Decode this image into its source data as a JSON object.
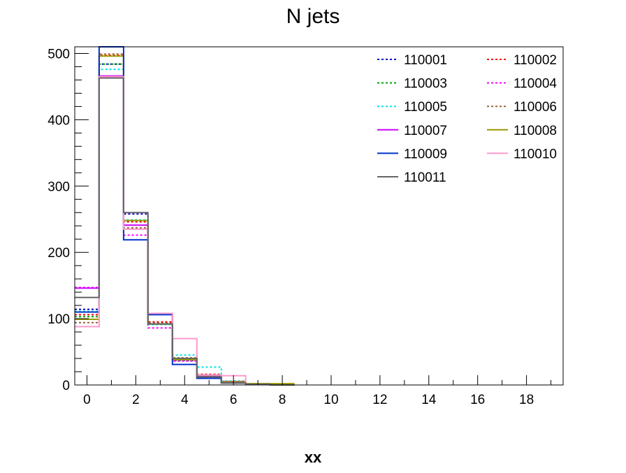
{
  "chart_data": {
    "type": "line",
    "title": "N jets",
    "xlabel": "xx",
    "ylabel": "",
    "xlim": [
      -0.5,
      19.5
    ],
    "ylim": [
      0,
      510
    ],
    "x_ticks": [
      0,
      2,
      4,
      6,
      8,
      10,
      12,
      14,
      16,
      18
    ],
    "y_ticks": [
      0,
      100,
      200,
      300,
      400,
      500
    ],
    "bins": [
      0,
      1,
      2,
      3,
      4,
      5,
      6,
      7,
      8
    ],
    "legend_position": "top-right",
    "series": [
      {
        "name": "110001",
        "color": "#0000cc",
        "dash": true,
        "values": [
          114,
          484,
          258,
          93,
          37,
          13,
          4,
          1,
          0
        ]
      },
      {
        "name": "110002",
        "color": "#ff0000",
        "dash": true,
        "values": [
          106,
          497,
          246,
          95,
          40,
          16,
          5,
          2,
          1
        ]
      },
      {
        "name": "110003",
        "color": "#00a000",
        "dash": true,
        "values": [
          103,
          484,
          248,
          92,
          38,
          14,
          4,
          1,
          0
        ]
      },
      {
        "name": "110004",
        "color": "#ff00ff",
        "dash": true,
        "values": [
          147,
          466,
          226,
          86,
          36,
          13,
          3,
          1,
          0
        ]
      },
      {
        "name": "110005",
        "color": "#00e5e5",
        "dash": true,
        "values": [
          111,
          476,
          249,
          91,
          45,
          27,
          6,
          2,
          1
        ]
      },
      {
        "name": "110006",
        "color": "#996633",
        "dash": true,
        "values": [
          94,
          499,
          237,
          93,
          41,
          15,
          5,
          1,
          0
        ]
      },
      {
        "name": "110007",
        "color": "#cc00ff",
        "dash": false,
        "values": [
          146,
          466,
          241,
          107,
          39,
          12,
          4,
          1,
          0
        ]
      },
      {
        "name": "110008",
        "color": "#999900",
        "dash": false,
        "values": [
          99,
          496,
          248,
          92,
          38,
          11,
          4,
          2,
          2
        ]
      },
      {
        "name": "110009",
        "color": "#0033cc",
        "dash": false,
        "values": [
          110,
          510,
          219,
          106,
          31,
          10,
          3,
          1,
          0
        ]
      },
      {
        "name": "110010",
        "color": "#ff99cc",
        "dash": false,
        "values": [
          88,
          465,
          235,
          108,
          70,
          15,
          14,
          1,
          0
        ]
      },
      {
        "name": "110011",
        "color": "#666666",
        "dash": false,
        "values": [
          132,
          463,
          260,
          92,
          40,
          12,
          3,
          1,
          0
        ]
      }
    ]
  }
}
